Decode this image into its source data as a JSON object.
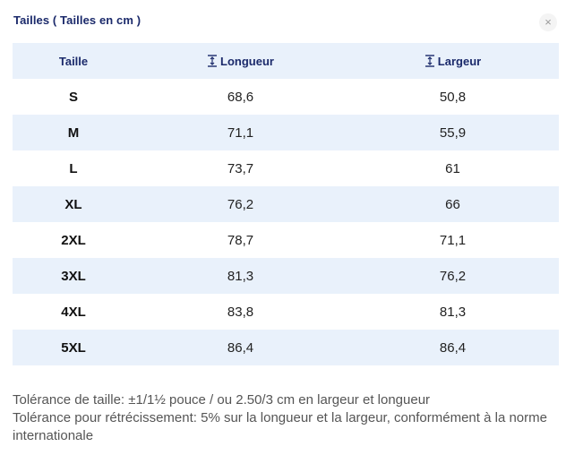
{
  "dialog": {
    "title": "Tailles ( Tailles en cm )",
    "close_symbol": "×"
  },
  "table": {
    "headers": {
      "size": "Taille",
      "length": "Longueur",
      "width": "Largeur",
      "length_icon": "height-measure-icon",
      "width_icon": "height-measure-icon"
    },
    "rows": [
      {
        "size": "S",
        "length": "68,6",
        "width": "50,8"
      },
      {
        "size": "M",
        "length": "71,1",
        "width": "55,9"
      },
      {
        "size": "L",
        "length": "73,7",
        "width": "61"
      },
      {
        "size": "XL",
        "length": "76,2",
        "width": "66"
      },
      {
        "size": "2XL",
        "length": "78,7",
        "width": "71,1"
      },
      {
        "size": "3XL",
        "length": "81,3",
        "width": "76,2"
      },
      {
        "size": "4XL",
        "length": "83,8",
        "width": "81,3"
      },
      {
        "size": "5XL",
        "length": "86,4",
        "width": "86,4"
      }
    ]
  },
  "notes": {
    "size_tolerance": "Tolérance de taille: ±1/1½ pouce / ou 2.50/3 cm en largeur et longueur",
    "shrink_tolerance": "Tolérance pour rétrécissement: 5% sur la longueur et la largeur, conformément à la norme internationale"
  },
  "colors": {
    "accent": "#1b2a6b",
    "stripe": "#e9f1fb",
    "icon": "#1b2a6b"
  }
}
